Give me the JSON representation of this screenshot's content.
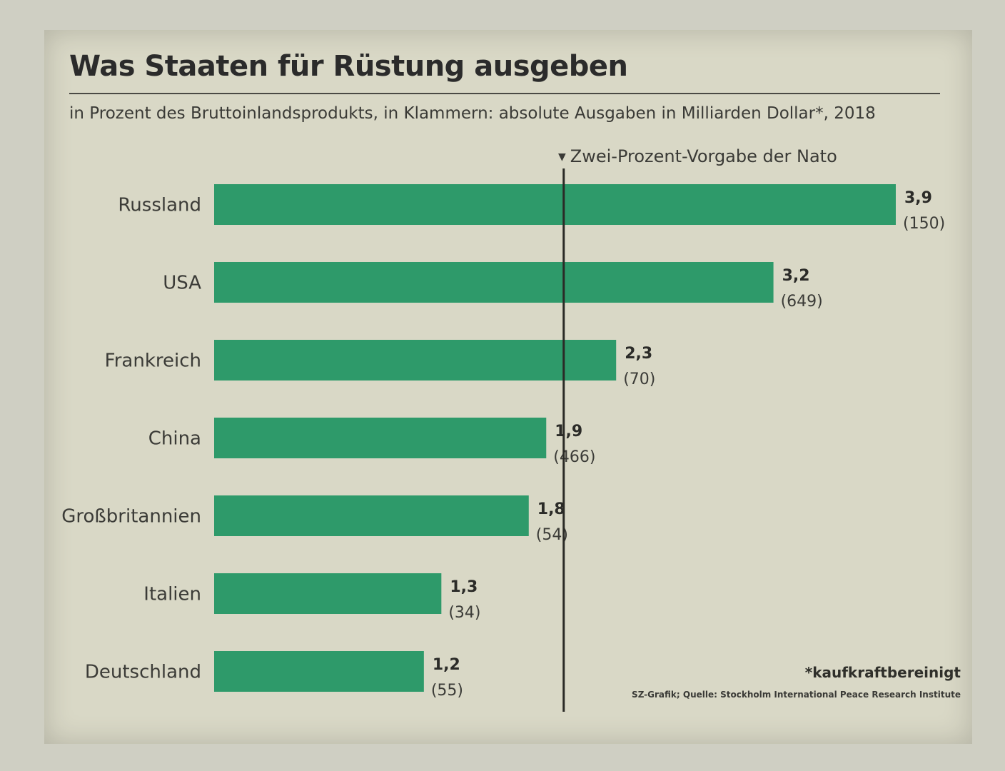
{
  "title": "Was Staaten für Rüstung ausgeben",
  "subtitle": "in Prozent des Bruttoinlandsprodukts, in Klammern: absolute Ausgaben in Milliarden Dollar*, 2018",
  "reference_line": {
    "label": "Zwei-Prozent-Vorgabe der Nato",
    "value": 2.0,
    "icon": "down-triangle-icon"
  },
  "footnote": "*kaufkraftbereinigt",
  "source": "SZ-Grafik; Quelle: Stockholm International Peace Research Institute",
  "colors": {
    "bar": "#2e9a6a",
    "background": "#d9d8c6",
    "text": "#333330"
  },
  "chart_data": {
    "type": "bar",
    "orientation": "horizontal",
    "title": "Was Staaten für Rüstung ausgeben",
    "categories": [
      "Russland",
      "USA",
      "Frankreich",
      "China",
      "Großbritannien",
      "Italien",
      "Deutschland"
    ],
    "values": [
      3.9,
      3.2,
      2.3,
      1.9,
      1.8,
      1.3,
      1.2
    ],
    "value_labels": [
      "3,9",
      "3,2",
      "2,3",
      "1,9",
      "1,8",
      "1,3",
      "1,2"
    ],
    "secondary_values": [
      150,
      649,
      70,
      466,
      54,
      34,
      55
    ],
    "secondary_labels": [
      "(150)",
      "(649)",
      "(70)",
      "(466)",
      "(54)",
      "(34)",
      "(55)"
    ],
    "xlim": [
      0,
      3.9
    ],
    "grid": false,
    "legend": "none"
  }
}
